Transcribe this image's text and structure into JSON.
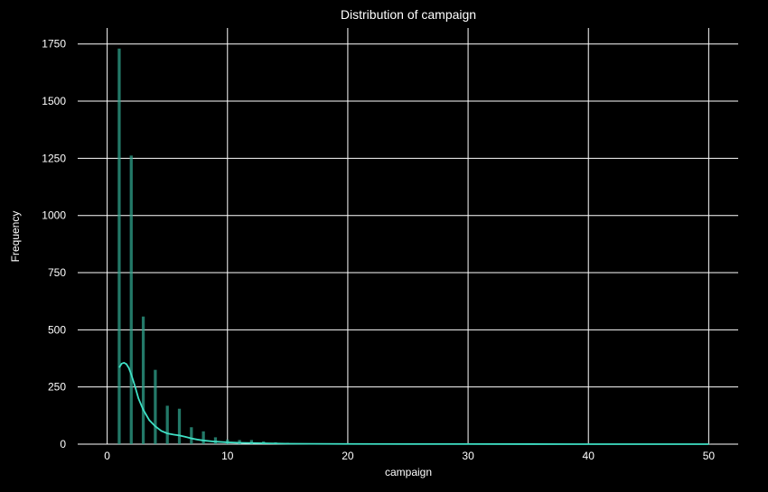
{
  "chart_data": {
    "type": "bar",
    "title": "Distribution of campaign",
    "xlabel": "campaign",
    "ylabel": "Frequency",
    "xlim": [
      -2.45,
      52.45
    ],
    "ylim": [
      0,
      1820
    ],
    "xticks": [
      0,
      10,
      20,
      30,
      40,
      50
    ],
    "yticks": [
      0,
      250,
      500,
      750,
      1000,
      1250,
      1500,
      1750
    ],
    "grid": true,
    "background_color": "#000000",
    "grid_color": "#ffffff",
    "bar_color": "#2fa18b",
    "kde_color": "#3fe0c5",
    "bar_width": 0.245,
    "bars": [
      {
        "x": 1,
        "value": 1730
      },
      {
        "x": 2,
        "value": 1262
      },
      {
        "x": 3,
        "value": 558
      },
      {
        "x": 4,
        "value": 325
      },
      {
        "x": 5,
        "value": 168
      },
      {
        "x": 6,
        "value": 155
      },
      {
        "x": 7,
        "value": 74
      },
      {
        "x": 8,
        "value": 56
      },
      {
        "x": 9,
        "value": 30
      },
      {
        "x": 10,
        "value": 20
      },
      {
        "x": 11,
        "value": 18
      },
      {
        "x": 12,
        "value": 18
      },
      {
        "x": 13,
        "value": 12
      },
      {
        "x": 14,
        "value": 8
      },
      {
        "x": 15,
        "value": 6
      },
      {
        "x": 16,
        "value": 4
      },
      {
        "x": 17,
        "value": 3
      },
      {
        "x": 18,
        "value": 3
      },
      {
        "x": 19,
        "value": 2
      },
      {
        "x": 20,
        "value": 2
      },
      {
        "x": 21,
        "value": 1
      },
      {
        "x": 22,
        "value": 1
      },
      {
        "x": 23,
        "value": 1
      },
      {
        "x": 24,
        "value": 1
      },
      {
        "x": 25,
        "value": 1
      },
      {
        "x": 28,
        "value": 1
      },
      {
        "x": 29,
        "value": 1
      },
      {
        "x": 31,
        "value": 1
      },
      {
        "x": 32,
        "value": 1
      },
      {
        "x": 50,
        "value": 1
      }
    ],
    "kde": [
      [
        1.0,
        335
      ],
      [
        1.2,
        352
      ],
      [
        1.4,
        356
      ],
      [
        1.6,
        350
      ],
      [
        1.8,
        333
      ],
      [
        2.0,
        305
      ],
      [
        2.3,
        255
      ],
      [
        2.6,
        200
      ],
      [
        3.0,
        150
      ],
      [
        3.5,
        105
      ],
      [
        4.0,
        78
      ],
      [
        4.5,
        58
      ],
      [
        5.0,
        47
      ],
      [
        5.5,
        42
      ],
      [
        6.0,
        38
      ],
      [
        6.5,
        32
      ],
      [
        7.0,
        25
      ],
      [
        7.5,
        20
      ],
      [
        8.0,
        16
      ],
      [
        9.0,
        11
      ],
      [
        10.0,
        8
      ],
      [
        11.0,
        6
      ],
      [
        12.0,
        5
      ],
      [
        13.0,
        4
      ],
      [
        14.0,
        3
      ],
      [
        15.0,
        2
      ],
      [
        17.0,
        1.5
      ],
      [
        20.0,
        1
      ],
      [
        25.0,
        0.6
      ],
      [
        30.0,
        0.4
      ],
      [
        35.0,
        0.2
      ],
      [
        40.0,
        0.1
      ],
      [
        45.0,
        0.05
      ],
      [
        50.0,
        0.02
      ]
    ]
  }
}
